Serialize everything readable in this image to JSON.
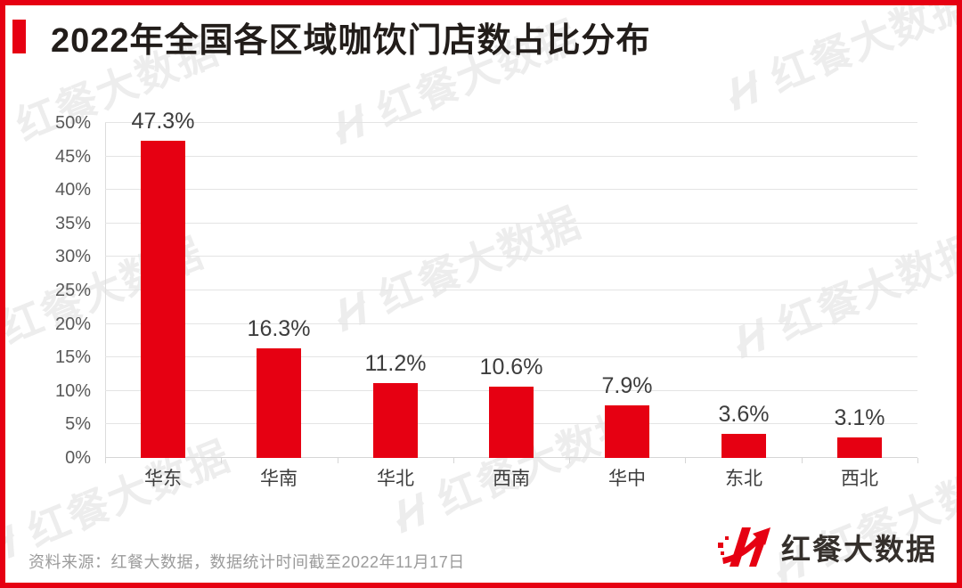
{
  "page": {
    "title": "2022年全国各区域咖饮门店数占比分布"
  },
  "chart_data": {
    "type": "bar",
    "title": "2022年全国各区域咖饮门店数占比分布",
    "categories": [
      "华东",
      "华南",
      "华北",
      "西南",
      "华中",
      "东北",
      "西北"
    ],
    "values": [
      47.3,
      16.3,
      11.2,
      10.6,
      7.9,
      3.6,
      3.1
    ],
    "value_labels": [
      "47.3%",
      "16.3%",
      "11.2%",
      "10.6%",
      "7.9%",
      "3.6%",
      "3.1%"
    ],
    "xlabel": "",
    "ylabel": "",
    "ylim": [
      0,
      50
    ],
    "ytick_step": 5,
    "ytick_labels": [
      "0%",
      "5%",
      "10%",
      "15%",
      "20%",
      "25%",
      "30%",
      "35%",
      "40%",
      "45%",
      "50%"
    ],
    "grid": true,
    "legend": false,
    "bar_color": "#e60012"
  },
  "footer": {
    "source_note": "资料来源：红餐大数据，数据统计时间截至2022年11月17日"
  },
  "branding": {
    "logo_text": "红餐大数据",
    "watermark_text": "红餐大数据"
  },
  "colors": {
    "accent_red": "#e60012",
    "title_text": "#221d1a",
    "label_text": "#3d3d3d",
    "axis_text": "#595959",
    "muted_text": "#9b9b9b",
    "gridline": "#e4e4e4",
    "watermark": "#ededed"
  }
}
